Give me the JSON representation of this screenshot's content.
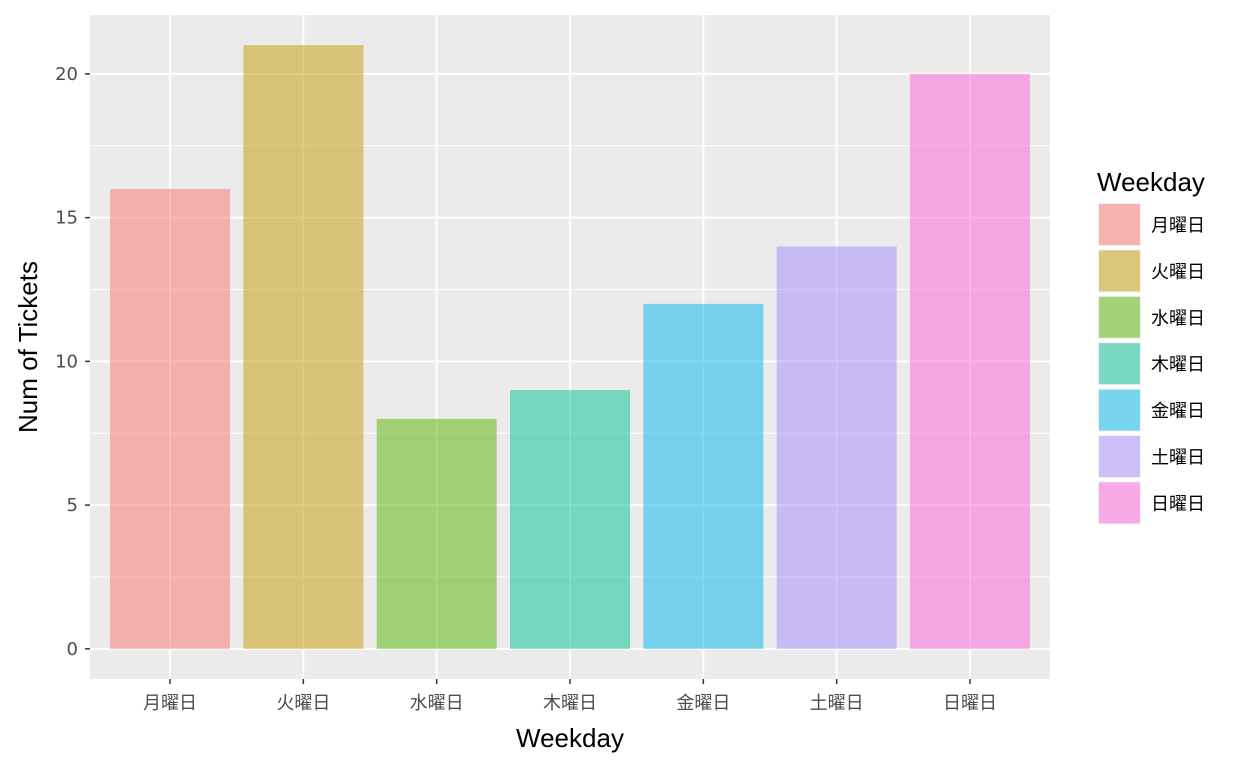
{
  "chart_data": {
    "type": "bar",
    "categories": [
      "月曜日",
      "火曜日",
      "水曜日",
      "木曜日",
      "金曜日",
      "土曜日",
      "日曜日"
    ],
    "values": [
      16,
      21,
      8,
      9,
      12,
      14,
      20
    ],
    "colors": [
      "#F8766D",
      "#C49A00",
      "#53B400",
      "#00C094",
      "#00B6EB",
      "#A58AFF",
      "#FB61D7"
    ],
    "bar_opacity": 0.5,
    "title": "",
    "xlabel": "Weekday",
    "ylabel": "Num of Tickets",
    "ylim": [
      -1.05,
      22.05
    ],
    "yticks": [
      0,
      5,
      10,
      15,
      20
    ],
    "yminor": [
      2.5,
      7.5,
      12.5,
      17.5
    ],
    "grid": true,
    "panel_background": "#EBEBEB",
    "grid_color": "#FFFFFF",
    "legend": {
      "title": "Weekday",
      "position": "right",
      "labels": [
        "月曜日",
        "火曜日",
        "水曜日",
        "木曜日",
        "金曜日",
        "土曜日",
        "日曜日"
      ]
    }
  }
}
